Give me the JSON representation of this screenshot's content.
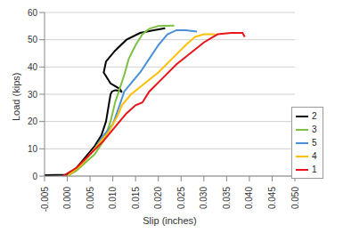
{
  "chart_data": {
    "type": "line",
    "x_label": "Slip (inches)",
    "y_label": "Load (kips)",
    "xlim": [
      -0.005,
      0.05
    ],
    "ylim": [
      0,
      60
    ],
    "xticks": [
      {
        "value": -0.005,
        "label": "-0.005"
      },
      {
        "value": 0,
        "label": "0.000"
      },
      {
        "value": 0.005,
        "label": "0.005"
      },
      {
        "value": 0.01,
        "label": "0.010"
      },
      {
        "value": 0.015,
        "label": "0.015"
      },
      {
        "value": 0.02,
        "label": "0.020"
      },
      {
        "value": 0.025,
        "label": "0.025"
      },
      {
        "value": 0.03,
        "label": "0.030"
      },
      {
        "value": 0.035,
        "label": "0.035"
      },
      {
        "value": 0.04,
        "label": "0.040"
      },
      {
        "value": 0.045,
        "label": "0.045"
      },
      {
        "value": 0.05,
        "label": "0.050"
      }
    ],
    "yticks": [
      0,
      10,
      20,
      30,
      40,
      50,
      60
    ],
    "grid": true,
    "legend": "right",
    "series": [
      {
        "name": "2",
        "color": "#000000",
        "x": [
          -0.005,
          0,
          0.002,
          0.004,
          0.006,
          0.0075,
          0.0085,
          0.009,
          0.0095,
          0.0098,
          0.0105,
          0.0115,
          0.012,
          0.0115,
          0.0095,
          0.008,
          0.0085,
          0.0105,
          0.013,
          0.016,
          0.019,
          0.0215
        ],
        "values": [
          0.3,
          0.5,
          3,
          7,
          11,
          15,
          20,
          25,
          30,
          31,
          31.5,
          31.3,
          30.8,
          32,
          34,
          38,
          42,
          46,
          50,
          52.5,
          53.5,
          54.2
        ]
      },
      {
        "name": "3",
        "color": "#7cc142",
        "x": [
          0,
          0.002,
          0.004,
          0.006,
          0.008,
          0.0095,
          0.0105,
          0.0115,
          0.0125,
          0.0135,
          0.015,
          0.0165,
          0.018,
          0.02,
          0.0235
        ],
        "values": [
          0,
          2,
          5,
          8,
          13,
          20,
          27,
          32,
          37,
          43,
          48,
          52,
          54,
          55,
          55.2
        ]
      },
      {
        "name": "5",
        "color": "#4a90d9",
        "x": [
          0,
          0.003,
          0.006,
          0.008,
          0.01,
          0.0115,
          0.0125,
          0.014,
          0.016,
          0.018,
          0.02,
          0.022,
          0.024,
          0.026,
          0.0285
        ],
        "values": [
          0,
          4,
          10,
          15,
          19,
          26,
          31,
          34,
          38,
          43,
          48,
          52,
          53.5,
          53.5,
          53
        ]
      },
      {
        "name": "4",
        "color": "#ffc000",
        "x": [
          0,
          0.003,
          0.006,
          0.009,
          0.011,
          0.012,
          0.014,
          0.017,
          0.02,
          0.023,
          0.026,
          0.028,
          0.03,
          0.0325
        ],
        "values": [
          0,
          4,
          10,
          16,
          22,
          26,
          30,
          34,
          38,
          43,
          48,
          51,
          52,
          52
        ]
      },
      {
        "name": "1",
        "color": "#e8141b",
        "x": [
          -0.001,
          0.002,
          0.005,
          0.008,
          0.011,
          0.013,
          0.015,
          0.0165,
          0.018,
          0.021,
          0.024,
          0.027,
          0.03,
          0.033,
          0.036,
          0.0385,
          0.039
        ],
        "values": [
          0,
          3,
          8,
          13,
          19,
          23,
          26,
          27,
          31,
          36,
          41,
          45,
          49,
          52,
          52.5,
          52.5,
          51
        ]
      }
    ]
  }
}
